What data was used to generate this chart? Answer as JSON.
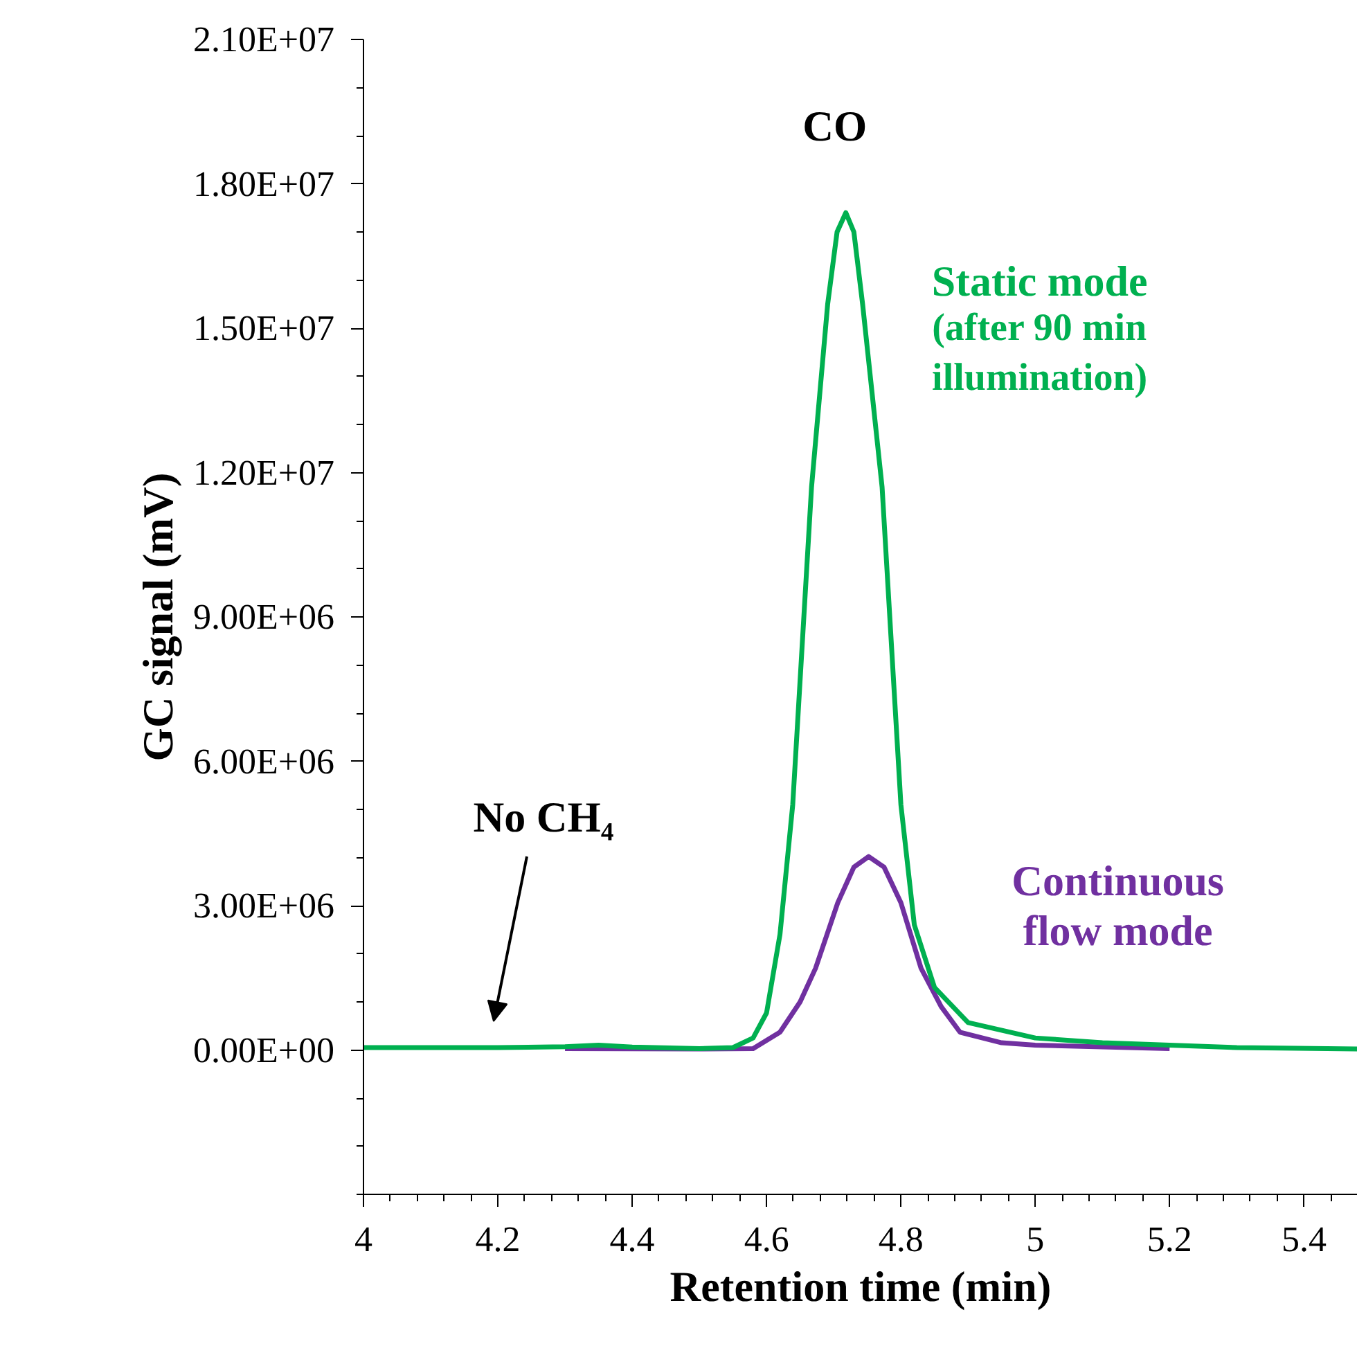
{
  "chart_data": {
    "type": "line",
    "xlabel": "Retention time (min)",
    "ylabel": "GC signal (mV)",
    "xlim": [
      4,
      5.48
    ],
    "ylim": [
      -3000000,
      21000000
    ],
    "xticks": [
      4,
      4.2,
      4.4,
      4.6,
      4.8,
      5,
      5.2,
      5.4
    ],
    "yticks": [
      {
        "value": 0,
        "label": "0.00E+00"
      },
      {
        "value": 3000000,
        "label": "3.00E+06"
      },
      {
        "value": 6000000,
        "label": "6.00E+06"
      },
      {
        "value": 9000000,
        "label": "9.00E+06"
      },
      {
        "value": 12000000,
        "label": "1.20E+07"
      },
      {
        "value": 15000000,
        "label": "1.50E+07"
      },
      {
        "value": 18000000,
        "label": "1.80E+07"
      },
      {
        "value": 21000000,
        "label": "2.10E+07"
      }
    ],
    "grid": false,
    "marker": "none",
    "line_style": "solid",
    "series": [
      {
        "name": "Continuous flow mode",
        "color": "#7030a0",
        "x": [
          4.3,
          4.5,
          4.58,
          4.62,
          4.65,
          4.673,
          4.706,
          4.73,
          4.752,
          4.775,
          4.8,
          4.83,
          4.86,
          4.888,
          4.95,
          5.0,
          5.2
        ],
        "values": [
          30000,
          20000,
          30000,
          370000,
          1000000,
          1700000,
          3060000,
          3800000,
          4020000,
          3800000,
          3060000,
          1700000,
          900000,
          370000,
          150000,
          100000,
          30000
        ]
      },
      {
        "name": "Static mode (after 90 min illumination)",
        "color": "#00b050",
        "x": [
          4.0,
          4.2,
          4.3,
          4.35,
          4.4,
          4.5,
          4.55,
          4.58,
          4.6,
          4.62,
          4.639,
          4.667,
          4.691,
          4.705,
          4.718,
          4.73,
          4.743,
          4.772,
          4.8,
          4.82,
          4.85,
          4.9,
          5.0,
          5.1,
          5.2,
          5.3,
          5.48
        ],
        "values": [
          50000,
          50000,
          70000,
          100000,
          60000,
          30000,
          50000,
          250000,
          770000,
          2400000,
          5100000,
          11700000,
          15500000,
          17000000,
          17400000,
          17000000,
          15500000,
          11700000,
          5100000,
          2600000,
          1300000,
          570000,
          250000,
          150000,
          100000,
          50000,
          20000
        ]
      }
    ],
    "annotations": [
      {
        "text": "CO",
        "x": 4.718,
        "y": 17400000
      },
      "No CH₄"
    ]
  }
}
